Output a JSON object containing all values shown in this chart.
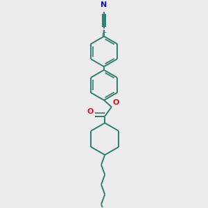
{
  "bg_color": "#ececec",
  "bond_color": "#2d7d6b",
  "N_color": "#1111cc",
  "O_color": "#dd1111",
  "lw": 1.4,
  "fig_w": 3.0,
  "fig_h": 3.0,
  "dpi": 100,
  "xlim": [
    -0.35,
    0.35
  ],
  "ylim": [
    -1.55,
    0.85
  ],
  "ring_r": 0.18,
  "cy_r": 0.19,
  "dbo_benz": 0.022,
  "dbo_triple": 0.02,
  "dbo_carbonyl": 0.022,
  "cn_label_fontsize": 8,
  "o_label_fontsize": 8
}
